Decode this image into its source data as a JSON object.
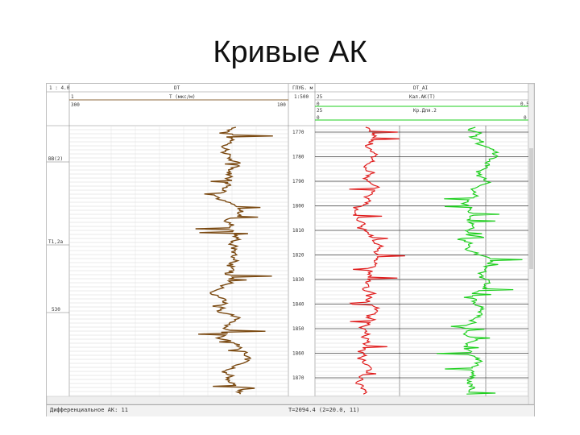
{
  "slide": {
    "title": "Кривые АК"
  },
  "header": {
    "track1": {
      "top_left": "1 : 4.0",
      "title": "DT",
      "sub_left": "1",
      "sub_mid": "T (мкс/м)",
      "range_left": "300",
      "range_right": "100"
    },
    "depth": {
      "top": "ГЛУБ. м",
      "sub": "1:500"
    },
    "track2": {
      "title": "DT_AI",
      "sub1_left": "25",
      "sub1_mid": "Кал.АК(Т)",
      "sub2_left": "0",
      "sub2_right": "0.5",
      "sub3_left": "25",
      "sub3_mid": "Кр.Для.2",
      "sub4_left": "0",
      "sub4_right": "0"
    }
  },
  "depth_labels": [
    "1770",
    "1780",
    "1790",
    "1800",
    "1810",
    "1820",
    "1830",
    "1840",
    "1850",
    "1860",
    "1870"
  ],
  "left_labels": [
    "BB(2)",
    "T1,2a",
    "530"
  ],
  "curves": {
    "brown": "#7b4a12",
    "red": "#e01b1b",
    "green": "#1ecf1e"
  },
  "statusbar": {
    "left": "Дифференциальное АК: 11",
    "right": "T=2094.4 (2=20.0, 11)"
  }
}
